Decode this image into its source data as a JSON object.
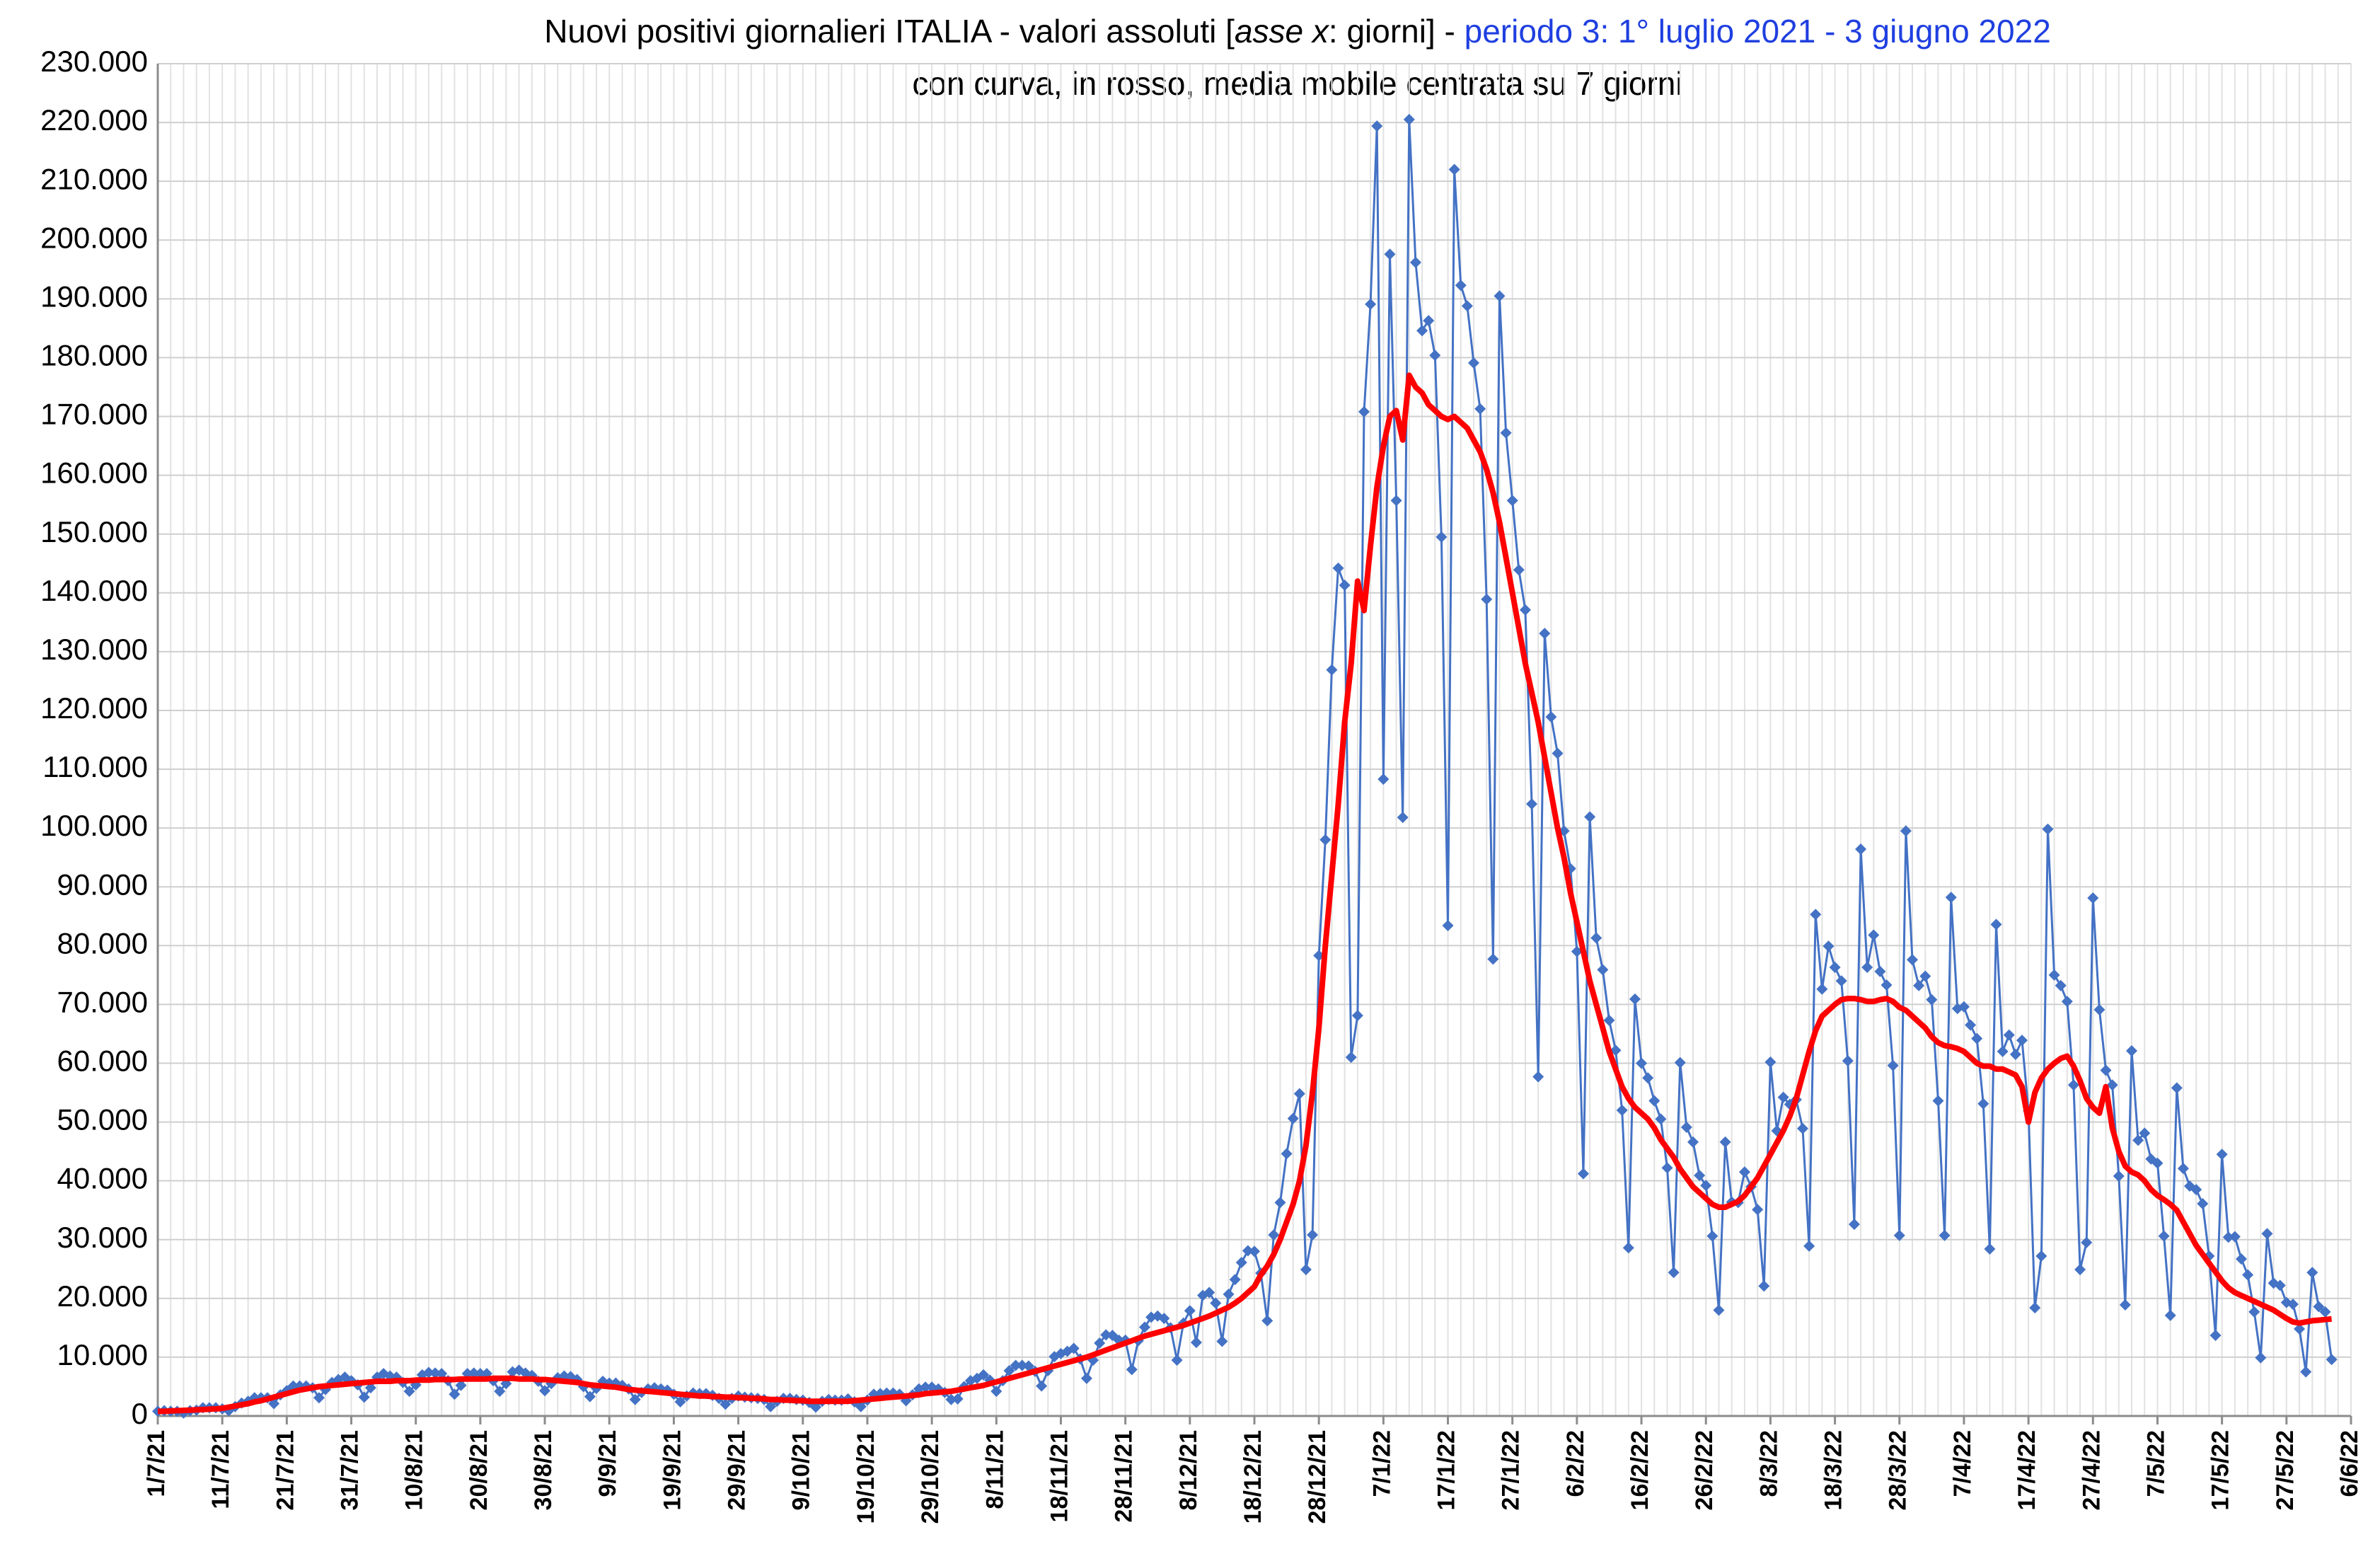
{
  "chart_data": {
    "type": "line",
    "title": [
      "Nuovi positivi giornalieri ITALIA - valori assoluti [",
      "asse x",
      ": giorni] - ",
      "periodo 3: 1° luglio 2021 - 3 giugno 2022"
    ],
    "subtitle": "con curva, in rosso, media mobile centrata su 7 giorni",
    "categories": [
      "1/7/21",
      null,
      null,
      null,
      null,
      null,
      null,
      null,
      null,
      null,
      "11/7/21",
      null,
      null,
      null,
      null,
      null,
      null,
      null,
      null,
      null,
      "21/7/21",
      null,
      null,
      null,
      null,
      null,
      null,
      null,
      null,
      null,
      "31/7/21",
      null,
      null,
      null,
      null,
      null,
      null,
      null,
      null,
      null,
      "10/8/21",
      null,
      null,
      null,
      null,
      null,
      null,
      null,
      null,
      null,
      "20/8/21",
      null,
      null,
      null,
      null,
      null,
      null,
      null,
      null,
      null,
      "30/8/21",
      null,
      null,
      null,
      null,
      null,
      null,
      null,
      null,
      null,
      "9/9/21",
      null,
      null,
      null,
      null,
      null,
      null,
      null,
      null,
      null,
      "19/9/21",
      null,
      null,
      null,
      null,
      null,
      null,
      null,
      null,
      null,
      "29/9/21",
      null,
      null,
      null,
      null,
      null,
      null,
      null,
      null,
      null,
      "9/10/21",
      null,
      null,
      null,
      null,
      null,
      null,
      null,
      null,
      null,
      "19/10/21",
      null,
      null,
      null,
      null,
      null,
      null,
      null,
      null,
      null,
      "29/10/21",
      null,
      null,
      null,
      null,
      null,
      null,
      null,
      null,
      null,
      "8/11/21",
      null,
      null,
      null,
      null,
      null,
      null,
      null,
      null,
      null,
      "18/11/21",
      null,
      null,
      null,
      null,
      null,
      null,
      null,
      null,
      null,
      "28/11/21",
      null,
      null,
      null,
      null,
      null,
      null,
      null,
      null,
      null,
      "8/12/21",
      null,
      null,
      null,
      null,
      null,
      null,
      null,
      null,
      null,
      "18/12/21",
      null,
      null,
      null,
      null,
      null,
      null,
      null,
      null,
      null,
      "28/12/21",
      null,
      null,
      null,
      null,
      null,
      null,
      null,
      null,
      null,
      "7/1/22",
      null,
      null,
      null,
      null,
      null,
      null,
      null,
      null,
      null,
      "17/1/22",
      null,
      null,
      null,
      null,
      null,
      null,
      null,
      null,
      null,
      "27/1/22",
      null,
      null,
      null,
      null,
      null,
      null,
      null,
      null,
      null,
      "6/2/22",
      null,
      null,
      null,
      null,
      null,
      null,
      null,
      null,
      null,
      "16/2/22",
      null,
      null,
      null,
      null,
      null,
      null,
      null,
      null,
      null,
      "26/2/22",
      null,
      null,
      null,
      null,
      null,
      null,
      null,
      null,
      null,
      "8/3/22",
      null,
      null,
      null,
      null,
      null,
      null,
      null,
      null,
      null,
      "18/3/22",
      null,
      null,
      null,
      null,
      null,
      null,
      null,
      null,
      null,
      "28/3/22",
      null,
      null,
      null,
      null,
      null,
      null,
      null,
      null,
      null,
      "7/4/22",
      null,
      null,
      null,
      null,
      null,
      null,
      null,
      null,
      null,
      "17/4/22",
      null,
      null,
      null,
      null,
      null,
      null,
      null,
      null,
      null,
      "27/4/22",
      null,
      null,
      null,
      null,
      null,
      null,
      null,
      null,
      null,
      "7/5/22",
      null,
      null,
      null,
      null,
      null,
      null,
      null,
      null,
      null,
      "17/5/22",
      null,
      null,
      null,
      null,
      null,
      null,
      null,
      null,
      null,
      "27/5/22",
      null,
      null,
      null,
      null,
      null,
      null,
      null,
      null,
      null,
      "6/6/22"
    ],
    "series": [
      {
        "color": "#4472c4",
        "markers": true,
        "values": [
          800,
          900,
          800,
          800,
          500,
          900,
          1000,
          1400,
          1400,
          1400,
          1200,
          900,
          1600,
          2200,
          2500,
          3100,
          3100,
          3100,
          2100,
          3600,
          4300,
          5100,
          5100,
          5100,
          4800,
          3100,
          4500,
          5700,
          6200,
          6600,
          6000,
          5300,
          3200,
          4800,
          6600,
          7200,
          6800,
          6600,
          5700,
          4200,
          5300,
          7000,
          7400,
          7300,
          7200,
          6000,
          3700,
          5200,
          7200,
          7300,
          7200,
          7200,
          6000,
          4200,
          5500,
          7500,
          7800,
          7300,
          6900,
          5900,
          4300,
          5500,
          6500,
          6800,
          6700,
          6200,
          5000,
          3300,
          4700,
          5900,
          5600,
          5600,
          5200,
          4600,
          2800,
          4000,
          4600,
          4800,
          4600,
          4400,
          3700,
          2400,
          3400,
          3900,
          3800,
          3800,
          3500,
          3000,
          2000,
          3000,
          3400,
          3200,
          3100,
          3000,
          2800,
          1600,
          2500,
          3000,
          3000,
          2800,
          2700,
          2300,
          1500,
          2500,
          2800,
          2700,
          2700,
          2900,
          2400,
          1600,
          2700,
          3700,
          3800,
          3900,
          3900,
          3700,
          2600,
          3600,
          4600,
          4900,
          4900,
          4600,
          4000,
          2800,
          2900,
          5000,
          6000,
          6400,
          7000,
          6100,
          4200,
          6000,
          7700,
          8600,
          8600,
          8500,
          7600,
          5100,
          7700,
          10100,
          10600,
          11000,
          11500,
          9700,
          6400,
          9500,
          12400,
          13800,
          13700,
          12900,
          12900,
          7900,
          12800,
          15100,
          16800,
          17000,
          16600,
          15000,
          9500,
          15800,
          17900,
          12500,
          20500,
          21000,
          19200,
          12700,
          20700,
          23200,
          26100,
          28100,
          28000,
          24300,
          16200,
          30800,
          36300,
          44600,
          50600,
          54800,
          24900,
          30800,
          78300,
          98000,
          126900,
          144200,
          141300,
          61000,
          68100,
          170800,
          189100,
          219400,
          108300,
          197600,
          155700,
          101800,
          220500,
          196200,
          184600,
          186300,
          180400,
          149500,
          83400,
          212000,
          192300,
          188800,
          179100,
          171300,
          138900,
          77700,
          190500,
          167200,
          155700,
          143900,
          137100,
          104100,
          57700,
          133100,
          118900,
          112700,
          99500,
          93100,
          79000,
          41200,
          101900,
          81300,
          75900,
          67300,
          62200,
          52000,
          28600,
          70900,
          60000,
          57500,
          53600,
          50500,
          42200,
          24400,
          60100,
          49100,
          46600,
          40900,
          39200,
          30600,
          18000,
          46600,
          36400,
          36300,
          41500,
          39000,
          35100,
          22100,
          60200,
          48500,
          54200,
          53000,
          53800,
          48900,
          28900,
          85300,
          72600,
          79900,
          76300,
          74000,
          60400,
          32600,
          96400,
          76300,
          81800,
          75600,
          73300,
          59600,
          30700,
          99500,
          77600,
          73200,
          74800,
          70800,
          53600,
          30700,
          88200,
          69300,
          69600,
          66500,
          64200,
          53100,
          28400,
          83600,
          62000,
          64800,
          61500,
          63900,
          51900,
          18400,
          27200,
          99800,
          75000,
          73200,
          70500,
          56300,
          24900,
          29500,
          88100,
          69100,
          58800,
          56300,
          40800,
          18900,
          62100,
          46900,
          48100,
          43700,
          43000,
          30600,
          17100,
          55800,
          42100,
          39100,
          38500,
          36100,
          27200,
          13700,
          44500,
          30400,
          30500,
          26700,
          24000,
          17700,
          9900,
          31000,
          22600,
          22200,
          19300,
          19000,
          14800,
          7500,
          24400,
          18600,
          17700,
          9600,
          null,
          null,
          null
        ]
      },
      {
        "color": "#ff0000",
        "markers": false,
        "values": [
          800,
          800,
          850,
          900,
          950,
          1000,
          1050,
          1100,
          1150,
          1200,
          1300,
          1500,
          1700,
          1900,
          2100,
          2400,
          2600,
          2900,
          3200,
          3500,
          3800,
          4100,
          4400,
          4600,
          4800,
          5000,
          5100,
          5200,
          5300,
          5400,
          5500,
          5600,
          5700,
          5800,
          5900,
          5900,
          5900,
          6000,
          6000,
          6000,
          6100,
          6100,
          6100,
          6200,
          6200,
          6200,
          6200,
          6300,
          6300,
          6300,
          6300,
          6300,
          6400,
          6400,
          6400,
          6400,
          6300,
          6300,
          6300,
          6200,
          6200,
          6100,
          6000,
          5900,
          5800,
          5700,
          5500,
          5300,
          5200,
          5100,
          5000,
          4900,
          4700,
          4500,
          4400,
          4300,
          4200,
          4100,
          4000,
          3900,
          3800,
          3700,
          3600,
          3500,
          3400,
          3400,
          3300,
          3300,
          3200,
          3200,
          3100,
          3100,
          3000,
          3000,
          2900,
          2800,
          2800,
          2700,
          2700,
          2600,
          2600,
          2500,
          2500,
          2500,
          2500,
          2500,
          2500,
          2500,
          2600,
          2700,
          2800,
          2900,
          3000,
          3100,
          3200,
          3300,
          3400,
          3500,
          3600,
          3800,
          3900,
          4000,
          4100,
          4200,
          4400,
          4600,
          4800,
          5000,
          5200,
          5500,
          5800,
          6100,
          6400,
          6700,
          7000,
          7300,
          7600,
          7900,
          8200,
          8500,
          8800,
          9100,
          9400,
          9700,
          10000,
          10400,
          10800,
          11200,
          11600,
          12000,
          12400,
          12800,
          13200,
          13600,
          13900,
          14200,
          14500,
          14800,
          15100,
          15400,
          15800,
          16200,
          16600,
          17000,
          17500,
          18000,
          18500,
          19200,
          20000,
          21000,
          22000,
          24000,
          25500,
          27500,
          30000,
          33000,
          36000,
          40000,
          46000,
          55000,
          66000,
          80000,
          92000,
          104000,
          118000,
          128000,
          142000,
          137000,
          148000,
          158000,
          165000,
          170000,
          171000,
          166000,
          177000,
          175000,
          174000,
          172000,
          171000,
          170000,
          169500,
          170000,
          169000,
          168000,
          166000,
          164000,
          161000,
          157000,
          152000,
          146000,
          140000,
          134000,
          128000,
          123000,
          118000,
          112000,
          106000,
          100000,
          95000,
          89000,
          84000,
          79000,
          74000,
          70000,
          66000,
          62000,
          59000,
          56000,
          54000,
          52500,
          51500,
          50500,
          49000,
          47000,
          45500,
          44000,
          42000,
          40500,
          39000,
          38000,
          37000,
          36000,
          35500,
          35500,
          36000,
          36500,
          37500,
          39000,
          40500,
          42500,
          44500,
          46500,
          48500,
          51000,
          54000,
          58000,
          62000,
          65500,
          68000,
          69000,
          70000,
          70800,
          71000,
          71000,
          70800,
          70500,
          70500,
          70800,
          71000,
          70500,
          69500,
          69000,
          68000,
          67000,
          66000,
          64500,
          63500,
          63000,
          62800,
          62500,
          62000,
          61000,
          60000,
          59500,
          59500,
          59000,
          59000,
          58500,
          58000,
          56000,
          50000,
          55000,
          57500,
          59000,
          60000,
          60800,
          61200,
          59500,
          57000,
          54000,
          52500,
          51500,
          56000,
          49000,
          45000,
          42500,
          41500,
          41000,
          40000,
          38500,
          37500,
          36800,
          36000,
          35000,
          33000,
          31000,
          29000,
          27500,
          26000,
          24500,
          23000,
          21800,
          21000,
          20500,
          20000,
          19500,
          19000,
          18500,
          18000,
          17300,
          16600,
          16000,
          15800,
          16000,
          16200,
          16300,
          16400,
          16500,
          null,
          null,
          null
        ]
      }
    ],
    "ylim": [
      0,
      230000
    ],
    "yticks": [
      0,
      {
        "value": 10000,
        "label": "10.000"
      },
      {
        "value": 20000,
        "label": "20.000"
      },
      {
        "value": 30000,
        "label": "30.000"
      },
      {
        "value": 40000,
        "label": "40.000"
      },
      {
        "value": 50000,
        "label": "50.000"
      },
      {
        "value": 60000,
        "label": "60.000"
      },
      {
        "value": 70000,
        "label": "70.000"
      },
      {
        "value": 80000,
        "label": "80.000"
      },
      {
        "value": 90000,
        "label": "90.000"
      },
      {
        "value": 100000,
        "label": "100.000"
      },
      {
        "value": 110000,
        "label": "110.000"
      },
      {
        "value": 120000,
        "label": "120.000"
      },
      {
        "value": 130000,
        "label": "130.000"
      },
      {
        "value": 140000,
        "label": "140.000"
      },
      {
        "value": 150000,
        "label": "150.000"
      },
      {
        "value": 160000,
        "label": "160.000"
      },
      {
        "value": 170000,
        "label": "170.000"
      },
      {
        "value": 180000,
        "label": "180.000"
      },
      {
        "value": 190000,
        "label": "190.000"
      },
      {
        "value": 200000,
        "label": "200.000"
      },
      {
        "value": 210000,
        "label": "210.000"
      },
      {
        "value": 220000,
        "label": "220.000"
      },
      {
        "value": 230000,
        "label": "230.000"
      }
    ],
    "grid": true
  }
}
